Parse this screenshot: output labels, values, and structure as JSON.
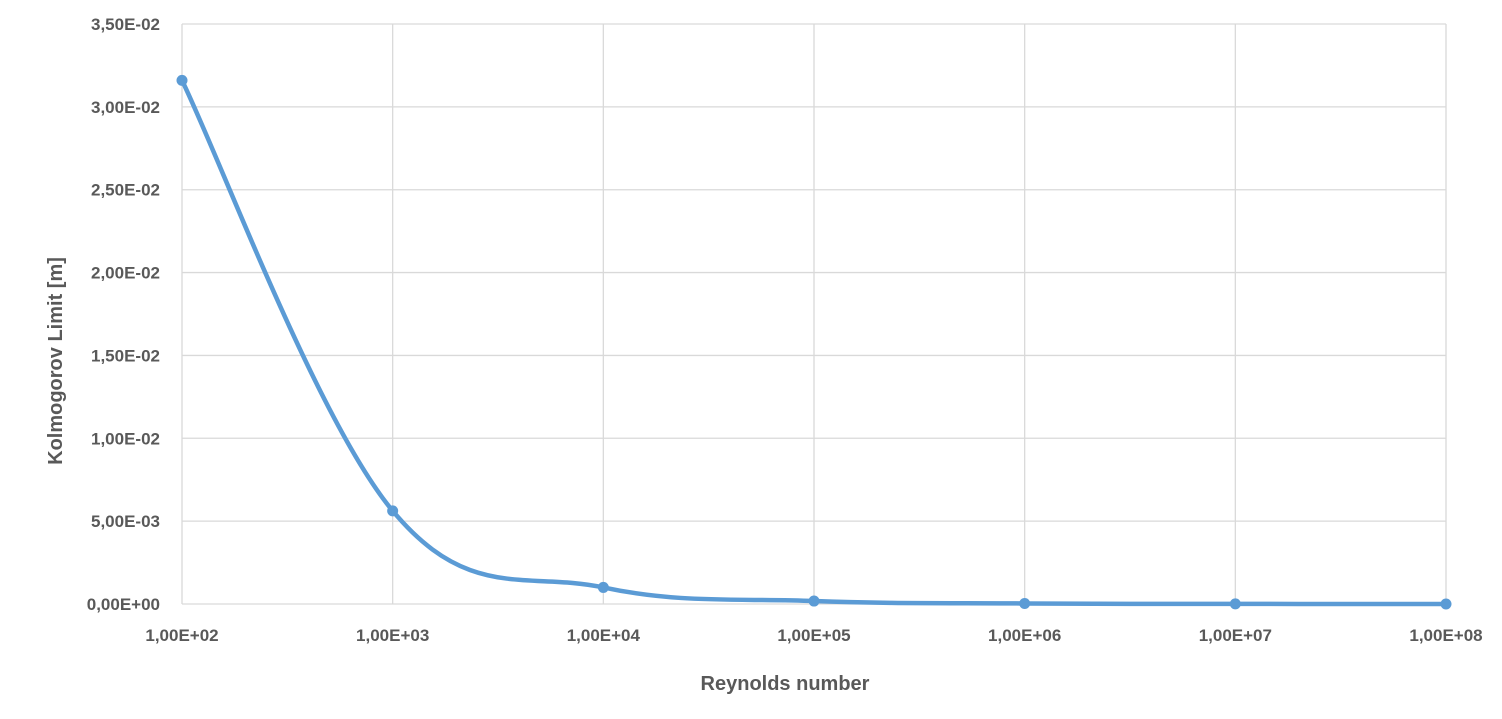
{
  "chart_data": {
    "type": "line",
    "title": "",
    "xlabel": "Reynolds number",
    "ylabel": "Kolmogorov Limit [m]",
    "x_scale": "log",
    "x": [
      100,
      1000,
      10000,
      100000,
      1000000,
      10000000,
      100000000
    ],
    "x_tick_labels": [
      "1,00E+02",
      "1,00E+03",
      "1,00E+04",
      "1,00E+05",
      "1,00E+06",
      "1,00E+07",
      "1,00E+08"
    ],
    "y_tick_values": [
      0,
      0.005,
      0.01,
      0.015,
      0.02,
      0.025,
      0.03,
      0.035
    ],
    "y_tick_labels": [
      "0,00E+00",
      "5,00E-03",
      "1,00E-02",
      "1,50E-02",
      "2,00E-02",
      "2,50E-02",
      "3,00E-02",
      "3,50E-02"
    ],
    "ylim": [
      0,
      0.035
    ],
    "xlim": [
      100,
      100000000
    ],
    "grid": true,
    "legend": "none",
    "smooth": true,
    "series": [
      {
        "values": [
          0.0316,
          0.00562,
          0.001,
          0.000178,
          3.16e-05,
          5.62e-06,
          1e-06
        ],
        "color": "#5B9BD5"
      }
    ]
  }
}
